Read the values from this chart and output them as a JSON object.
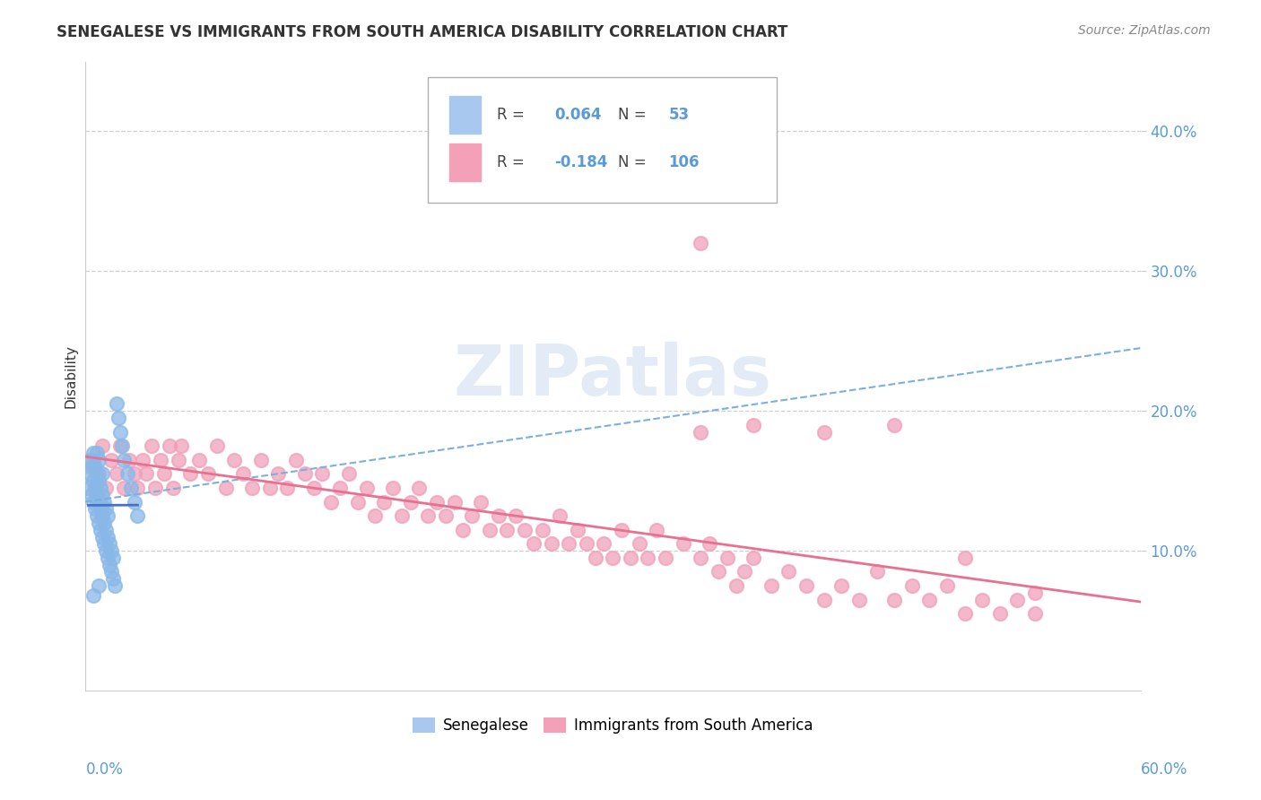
{
  "title": "SENEGALESE VS IMMIGRANTS FROM SOUTH AMERICA DISABILITY CORRELATION CHART",
  "source": "Source: ZipAtlas.com",
  "ylabel": "Disability",
  "xlim": [
    0.0,
    0.6
  ],
  "ylim": [
    0.0,
    0.45
  ],
  "legend1_R": "0.064",
  "legend1_N": "53",
  "legend2_R": "-0.184",
  "legend2_N": "106",
  "watermark": "ZIPatlas",
  "senegalese_color": "#89b8e8",
  "immigrants_color": "#f0a0b8",
  "line_blue_solid": "#4472c4",
  "line_blue_dash": "#7ab0e0",
  "line_pink_solid": "#e87090",
  "grid_color": "#d0d0d0",
  "right_tick_color": "#5b9bd5",
  "senegalese_x": [
    0.002,
    0.003,
    0.003,
    0.004,
    0.004,
    0.005,
    0.005,
    0.005,
    0.006,
    0.006,
    0.006,
    0.007,
    0.007,
    0.007,
    0.007,
    0.008,
    0.008,
    0.008,
    0.008,
    0.009,
    0.009,
    0.009,
    0.01,
    0.01,
    0.01,
    0.01,
    0.011,
    0.011,
    0.011,
    0.012,
    0.012,
    0.012,
    0.013,
    0.013,
    0.013,
    0.014,
    0.014,
    0.015,
    0.015,
    0.016,
    0.016,
    0.017,
    0.018,
    0.019,
    0.02,
    0.021,
    0.022,
    0.024,
    0.026,
    0.028,
    0.03,
    0.008,
    0.005
  ],
  "senegalese_y": [
    0.145,
    0.155,
    0.165,
    0.14,
    0.16,
    0.135,
    0.15,
    0.17,
    0.13,
    0.145,
    0.16,
    0.125,
    0.14,
    0.155,
    0.17,
    0.12,
    0.135,
    0.15,
    0.165,
    0.115,
    0.13,
    0.145,
    0.11,
    0.125,
    0.14,
    0.155,
    0.105,
    0.12,
    0.135,
    0.1,
    0.115,
    0.13,
    0.095,
    0.11,
    0.125,
    0.09,
    0.105,
    0.085,
    0.1,
    0.08,
    0.095,
    0.075,
    0.205,
    0.195,
    0.185,
    0.175,
    0.165,
    0.155,
    0.145,
    0.135,
    0.125,
    0.075,
    0.068
  ],
  "immigrants_x": [
    0.005,
    0.008,
    0.01,
    0.012,
    0.015,
    0.018,
    0.02,
    0.022,
    0.025,
    0.028,
    0.03,
    0.033,
    0.035,
    0.038,
    0.04,
    0.043,
    0.045,
    0.048,
    0.05,
    0.053,
    0.055,
    0.06,
    0.065,
    0.07,
    0.075,
    0.08,
    0.085,
    0.09,
    0.095,
    0.1,
    0.105,
    0.11,
    0.115,
    0.12,
    0.125,
    0.13,
    0.135,
    0.14,
    0.145,
    0.15,
    0.155,
    0.16,
    0.165,
    0.17,
    0.175,
    0.18,
    0.185,
    0.19,
    0.195,
    0.2,
    0.205,
    0.21,
    0.215,
    0.22,
    0.225,
    0.23,
    0.235,
    0.24,
    0.245,
    0.25,
    0.255,
    0.26,
    0.265,
    0.27,
    0.275,
    0.28,
    0.285,
    0.29,
    0.295,
    0.3,
    0.305,
    0.31,
    0.315,
    0.32,
    0.325,
    0.33,
    0.34,
    0.35,
    0.355,
    0.36,
    0.365,
    0.37,
    0.375,
    0.38,
    0.39,
    0.4,
    0.41,
    0.42,
    0.43,
    0.44,
    0.45,
    0.46,
    0.47,
    0.48,
    0.49,
    0.5,
    0.51,
    0.52,
    0.53,
    0.54,
    0.35,
    0.38,
    0.42,
    0.46,
    0.5,
    0.54
  ],
  "immigrants_y": [
    0.165,
    0.155,
    0.175,
    0.145,
    0.165,
    0.155,
    0.175,
    0.145,
    0.165,
    0.155,
    0.145,
    0.165,
    0.155,
    0.175,
    0.145,
    0.165,
    0.155,
    0.175,
    0.145,
    0.165,
    0.175,
    0.155,
    0.165,
    0.155,
    0.175,
    0.145,
    0.165,
    0.155,
    0.145,
    0.165,
    0.145,
    0.155,
    0.145,
    0.165,
    0.155,
    0.145,
    0.155,
    0.135,
    0.145,
    0.155,
    0.135,
    0.145,
    0.125,
    0.135,
    0.145,
    0.125,
    0.135,
    0.145,
    0.125,
    0.135,
    0.125,
    0.135,
    0.115,
    0.125,
    0.135,
    0.115,
    0.125,
    0.115,
    0.125,
    0.115,
    0.105,
    0.115,
    0.105,
    0.125,
    0.105,
    0.115,
    0.105,
    0.095,
    0.105,
    0.095,
    0.115,
    0.095,
    0.105,
    0.095,
    0.115,
    0.095,
    0.105,
    0.095,
    0.105,
    0.085,
    0.095,
    0.075,
    0.085,
    0.095,
    0.075,
    0.085,
    0.075,
    0.065,
    0.075,
    0.065,
    0.085,
    0.065,
    0.075,
    0.065,
    0.075,
    0.055,
    0.065,
    0.055,
    0.065,
    0.055,
    0.185,
    0.19,
    0.185,
    0.19,
    0.095,
    0.07
  ]
}
